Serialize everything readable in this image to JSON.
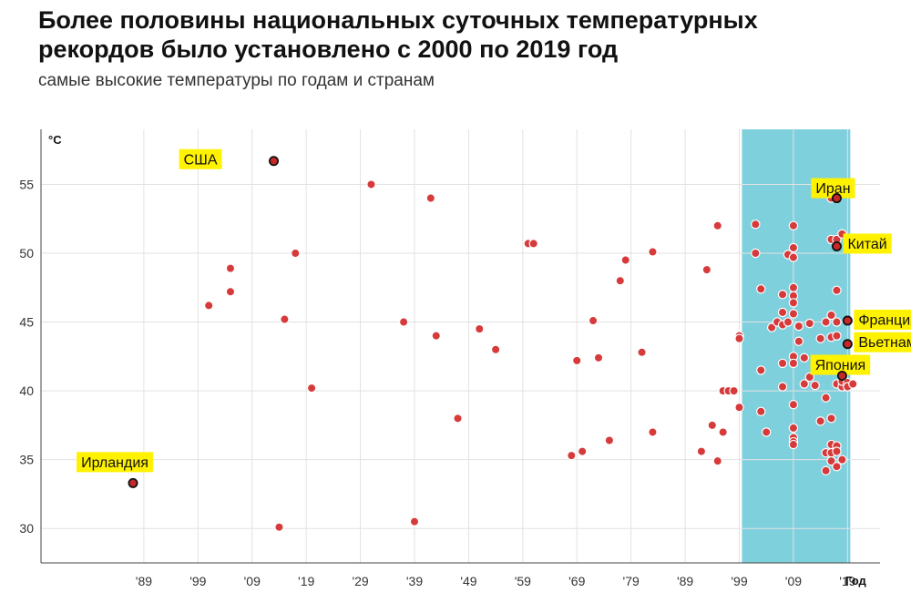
{
  "header": {
    "title_line1": "Более половины национальных суточных температурных",
    "title_line2": "рекордов было установлено с 2000 по 2019 год",
    "subtitle": "самые высокие температуры по годам и странам"
  },
  "chart_data": {
    "type": "scatter",
    "ylabel": "°C",
    "xlabel": "Год",
    "xlim": [
      1870,
      2025
    ],
    "ylim": [
      27.5,
      59
    ],
    "x_ticks": [
      {
        "year": 1889,
        "label": "'89"
      },
      {
        "year": 1899,
        "label": "'99"
      },
      {
        "year": 1909,
        "label": "'09"
      },
      {
        "year": 1919,
        "label": "'19"
      },
      {
        "year": 1929,
        "label": "'29"
      },
      {
        "year": 1939,
        "label": "'39"
      },
      {
        "year": 1949,
        "label": "'49"
      },
      {
        "year": 1959,
        "label": "'59"
      },
      {
        "year": 1969,
        "label": "'69"
      },
      {
        "year": 1979,
        "label": "'79"
      },
      {
        "year": 1989,
        "label": "'89"
      },
      {
        "year": 1999,
        "label": "'99"
      },
      {
        "year": 2009,
        "label": "'09"
      },
      {
        "year": 2019,
        "label": "'19"
      }
    ],
    "y_ticks": [
      30,
      35,
      40,
      45,
      50,
      55
    ],
    "highlight_range": [
      2000,
      2019
    ],
    "grid": true,
    "colors": {
      "point": "#d63a3a",
      "point_stroke": "#ffffff",
      "highlight": "#7fd0dd",
      "callout_bg": "#fff200",
      "callout_point": "#c62828"
    },
    "labeled_points": [
      {
        "label": "США",
        "x": 1913,
        "y": 56.7
      },
      {
        "label": "Ирландия",
        "x": 1887,
        "y": 33.3
      },
      {
        "label": "Иран",
        "x": 2017,
        "y": 54.0
      },
      {
        "label": "Китай",
        "x": 2017,
        "y": 50.5
      },
      {
        "label": "Франция",
        "x": 2019,
        "y": 45.1
      },
      {
        "label": "Вьетнам",
        "x": 2019,
        "y": 43.4
      },
      {
        "label": "Япония",
        "x": 2018,
        "y": 41.1
      }
    ],
    "points": [
      [
        1901,
        46.2
      ],
      [
        1905,
        48.9
      ],
      [
        1905,
        47.2
      ],
      [
        1914,
        30.1
      ],
      [
        1915,
        45.2
      ],
      [
        1917,
        50.0
      ],
      [
        1920,
        40.2
      ],
      [
        1931,
        55.0
      ],
      [
        1937,
        45.0
      ],
      [
        1939,
        30.5
      ],
      [
        1942,
        54.0
      ],
      [
        1943,
        44.0
      ],
      [
        1947,
        38.0
      ],
      [
        1951,
        44.5
      ],
      [
        1954,
        43.0
      ],
      [
        1960,
        50.7
      ],
      [
        1961,
        50.7
      ],
      [
        1968,
        35.3
      ],
      [
        1969,
        42.2
      ],
      [
        1970,
        35.6
      ],
      [
        1972,
        45.1
      ],
      [
        1973,
        42.4
      ],
      [
        1975,
        36.4
      ],
      [
        1977,
        48.0
      ],
      [
        1978,
        49.5
      ],
      [
        1981,
        42.8
      ],
      [
        1983,
        50.1
      ],
      [
        1983,
        37.0
      ],
      [
        1992,
        35.6
      ],
      [
        1993,
        48.8
      ],
      [
        1994,
        37.5
      ],
      [
        1995,
        52.0
      ],
      [
        1995,
        34.9
      ],
      [
        1996,
        40.0
      ],
      [
        1996,
        37.0
      ],
      [
        1997,
        40.0
      ],
      [
        1998,
        40.0
      ],
      [
        1999,
        44.0
      ],
      [
        1999,
        43.8
      ],
      [
        1999,
        38.8
      ],
      [
        2002,
        52.1
      ],
      [
        2002,
        50.0
      ],
      [
        2003,
        47.4
      ],
      [
        2003,
        41.5
      ],
      [
        2003,
        38.5
      ],
      [
        2004,
        37.0
      ],
      [
        2005,
        44.6
      ],
      [
        2006,
        45.0
      ],
      [
        2007,
        47.0
      ],
      [
        2007,
        45.7
      ],
      [
        2007,
        44.8
      ],
      [
        2007,
        42.0
      ],
      [
        2007,
        40.3
      ],
      [
        2008,
        45.0
      ],
      [
        2008,
        49.9
      ],
      [
        2009,
        52.0
      ],
      [
        2009,
        50.4
      ],
      [
        2009,
        49.7
      ],
      [
        2009,
        47.5
      ],
      [
        2009,
        46.9
      ],
      [
        2009,
        46.4
      ],
      [
        2009,
        45.6
      ],
      [
        2009,
        42.5
      ],
      [
        2009,
        42.0
      ],
      [
        2009,
        39.0
      ],
      [
        2009,
        37.3
      ],
      [
        2009,
        36.6
      ],
      [
        2009,
        36.3
      ],
      [
        2009,
        36.1
      ],
      [
        2010,
        44.7
      ],
      [
        2010,
        43.6
      ],
      [
        2011,
        42.4
      ],
      [
        2011,
        40.5
      ],
      [
        2012,
        44.9
      ],
      [
        2012,
        41.0
      ],
      [
        2013,
        40.4
      ],
      [
        2014,
        37.8
      ],
      [
        2014,
        43.8
      ],
      [
        2015,
        45.0
      ],
      [
        2015,
        39.5
      ],
      [
        2015,
        35.5
      ],
      [
        2015,
        34.2
      ],
      [
        2016,
        51.0
      ],
      [
        2016,
        45.5
      ],
      [
        2016,
        43.9
      ],
      [
        2016,
        41.9
      ],
      [
        2016,
        38.0
      ],
      [
        2016,
        36.1
      ],
      [
        2016,
        35.5
      ],
      [
        2016,
        34.9
      ],
      [
        2016,
        54.0
      ],
      [
        2017,
        51.0
      ],
      [
        2017,
        47.3
      ],
      [
        2017,
        45.0
      ],
      [
        2017,
        44.0
      ],
      [
        2017,
        40.5
      ],
      [
        2017,
        36.0
      ],
      [
        2017,
        35.6
      ],
      [
        2017,
        34.5
      ],
      [
        2018,
        51.4
      ],
      [
        2018,
        40.3
      ],
      [
        2018,
        40.7
      ],
      [
        2018,
        35.0
      ],
      [
        2019,
        40.6
      ],
      [
        2019,
        40.3
      ],
      [
        2020,
        40.5
      ]
    ]
  }
}
